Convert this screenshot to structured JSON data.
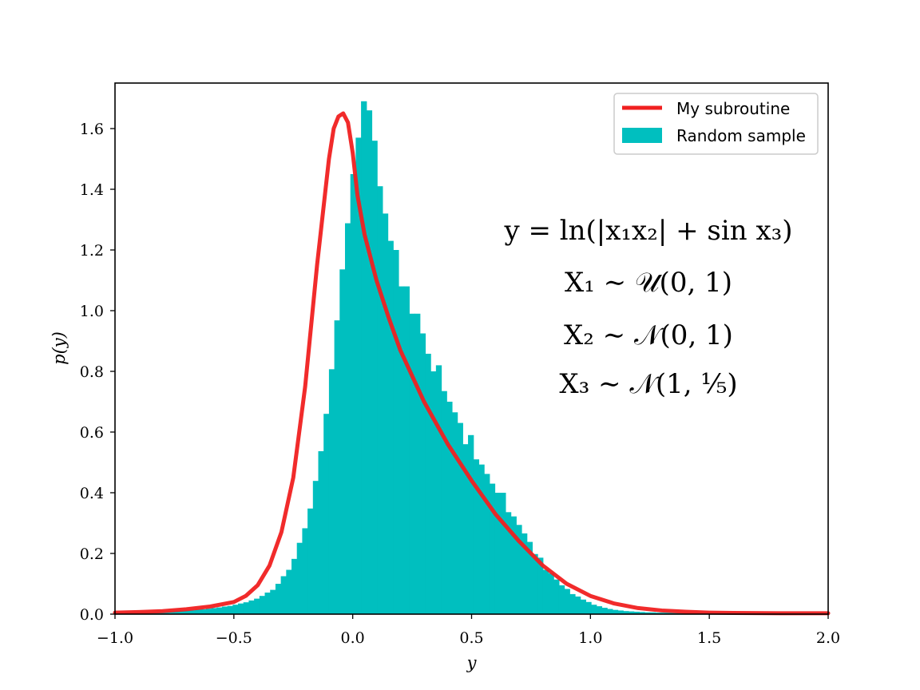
{
  "chart_data": {
    "type": "line",
    "xlabel": "y",
    "ylabel": "p(y)",
    "xlim": [
      -1.0,
      2.0
    ],
    "ylim": [
      0.0,
      1.75
    ],
    "xticks": [
      -1.0,
      -0.5,
      0.0,
      0.5,
      1.0,
      1.5,
      2.0
    ],
    "xtick_labels": [
      "−1.0",
      "−0.5",
      "0.0",
      "0.5",
      "1.0",
      "1.5",
      "2.0"
    ],
    "yticks": [
      0.0,
      0.2,
      0.4,
      0.6,
      0.8,
      1.0,
      1.2,
      1.4,
      1.6
    ],
    "ytick_labels": [
      "0.0",
      "0.2",
      "0.4",
      "0.6",
      "0.8",
      "1.0",
      "1.2",
      "1.4",
      "1.6"
    ],
    "legend_position": "top-right",
    "annotations": [
      "y = ln(|x₁x₂| + sin x₃)",
      "X₁ ∼ 𝒰(0, 1)",
      "X₂ ∼ 𝒩(0, 1)",
      "X₃ ∼ 𝒩(1, ¹⁄₅)"
    ],
    "series": [
      {
        "name": "My subroutine",
        "kind": "line",
        "color": "#f02020",
        "x": [
          -1.0,
          -0.9,
          -0.8,
          -0.7,
          -0.6,
          -0.5,
          -0.45,
          -0.4,
          -0.35,
          -0.3,
          -0.25,
          -0.2,
          -0.15,
          -0.1,
          -0.08,
          -0.06,
          -0.04,
          -0.02,
          0.0,
          0.02,
          0.05,
          0.1,
          0.15,
          0.2,
          0.3,
          0.4,
          0.5,
          0.6,
          0.7,
          0.8,
          0.9,
          1.0,
          1.1,
          1.2,
          1.3,
          1.4,
          1.5,
          1.6,
          1.8,
          2.0
        ],
        "y": [
          0.005,
          0.007,
          0.01,
          0.016,
          0.025,
          0.04,
          0.06,
          0.095,
          0.16,
          0.27,
          0.45,
          0.75,
          1.15,
          1.5,
          1.6,
          1.64,
          1.65,
          1.62,
          1.52,
          1.38,
          1.25,
          1.1,
          0.98,
          0.87,
          0.7,
          0.56,
          0.44,
          0.33,
          0.24,
          0.16,
          0.1,
          0.06,
          0.035,
          0.02,
          0.012,
          0.008,
          0.005,
          0.004,
          0.003,
          0.003
        ]
      },
      {
        "name": "Random sample",
        "kind": "histogram",
        "color": "#00bfbf",
        "bin_start": -1.0,
        "bin_width": 0.0225,
        "values": [
          0.004,
          0.004,
          0.005,
          0.005,
          0.005,
          0.006,
          0.006,
          0.007,
          0.008,
          0.008,
          0.009,
          0.01,
          0.011,
          0.012,
          0.013,
          0.015,
          0.016,
          0.018,
          0.02,
          0.022,
          0.025,
          0.027,
          0.031,
          0.035,
          0.039,
          0.045,
          0.051,
          0.06,
          0.071,
          0.08,
          0.1,
          0.125,
          0.146,
          0.182,
          0.235,
          0.283,
          0.348,
          0.439,
          0.537,
          0.66,
          0.807,
          0.968,
          1.136,
          1.288,
          1.45,
          1.57,
          1.69,
          1.66,
          1.56,
          1.41,
          1.32,
          1.23,
          1.2,
          1.08,
          1.08,
          0.99,
          0.99,
          0.925,
          0.858,
          0.8,
          0.82,
          0.735,
          0.7,
          0.665,
          0.63,
          0.56,
          0.59,
          0.51,
          0.493,
          0.462,
          0.43,
          0.4,
          0.4,
          0.336,
          0.322,
          0.294,
          0.266,
          0.238,
          0.198,
          0.186,
          0.146,
          0.135,
          0.114,
          0.095,
          0.083,
          0.066,
          0.058,
          0.048,
          0.04,
          0.031,
          0.026,
          0.021,
          0.017,
          0.014,
          0.012,
          0.01,
          0.009,
          0.008,
          0.007,
          0.006,
          0.006,
          0.005,
          0.005,
          0.005,
          0.004,
          0.004,
          0.004,
          0.004,
          0.004,
          0.004,
          0.004,
          0.004,
          0.004,
          0.004,
          0.004,
          0.004,
          0.004,
          0.004,
          0.004,
          0.004,
          0.004,
          0.004,
          0.004,
          0.004,
          0.004,
          0.004,
          0.004,
          0.004,
          0.004,
          0.004,
          0.004,
          0.004,
          0.004
        ]
      }
    ]
  }
}
